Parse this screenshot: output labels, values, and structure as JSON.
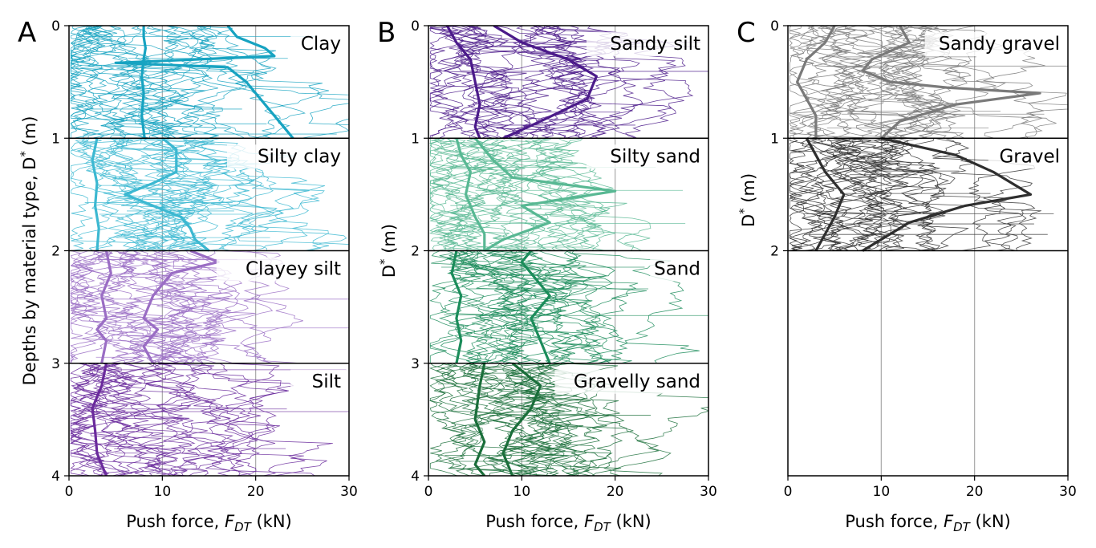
{
  "chart_data": [
    {
      "type": "line",
      "panel": "A",
      "xlabel": "Push force, F_DT (kN)",
      "xlabel_parts": {
        "pre": "Push force, ",
        "var": "F",
        "sub": "DT",
        "post": " (kN)"
      },
      "ylabel": "Depths by material type, D* (m)",
      "ylabel_parts": {
        "pre": "Depths by material type, D",
        "sup": "*",
        "post": " (m)"
      },
      "xlim": [
        0,
        30
      ],
      "ylim": [
        4,
        0
      ],
      "x_ticks": [
        "0",
        "10",
        "20",
        "30"
      ],
      "y_ticks": [
        "0",
        "1",
        "2",
        "3",
        "4"
      ],
      "grid": "vertical at 10 and 20",
      "segments": [
        {
          "name": "Clay",
          "depth": [
            0,
            1
          ],
          "color": "#17a3c1",
          "median": [
            [
              8,
              0
            ],
            [
              8,
              0.1
            ],
            [
              8.2,
              0.2
            ],
            [
              8,
              0.3
            ],
            [
              7.8,
              0.45
            ],
            [
              8,
              0.6
            ],
            [
              7.8,
              0.8
            ],
            [
              8.1,
              1
            ]
          ],
          "upper": [
            [
              17,
              0
            ],
            [
              18,
              0.1
            ],
            [
              21,
              0.2
            ],
            [
              22,
              0.27
            ],
            [
              5,
              0.33
            ],
            [
              17,
              0.37
            ],
            [
              19,
              0.5
            ],
            [
              21,
              0.7
            ],
            [
              23,
              0.9
            ],
            [
              24,
              1
            ]
          ]
        },
        {
          "name": "Silty clay",
          "depth": [
            1,
            2
          ],
          "color": "#3cb8d1",
          "median": [
            [
              3,
              1
            ],
            [
              2.5,
              1.2
            ],
            [
              3,
              1.4
            ],
            [
              2.8,
              1.6
            ],
            [
              3.2,
              1.8
            ],
            [
              3,
              2
            ]
          ],
          "upper": [
            [
              10,
              1
            ],
            [
              11.5,
              1.1
            ],
            [
              11.5,
              1.3
            ],
            [
              9,
              1.4
            ],
            [
              6,
              1.5
            ],
            [
              9,
              1.6
            ],
            [
              12,
              1.7
            ],
            [
              13,
              1.8
            ],
            [
              13.5,
              1.9
            ],
            [
              15,
              2
            ]
          ]
        },
        {
          "name": "Clayey silt",
          "depth": [
            2,
            3
          ],
          "color": "#9a6dc4",
          "median": [
            [
              4,
              2
            ],
            [
              4.5,
              2.2
            ],
            [
              3.5,
              2.4
            ],
            [
              4,
              2.6
            ],
            [
              3,
              2.7
            ],
            [
              4,
              2.8
            ],
            [
              3.5,
              3
            ]
          ],
          "upper": [
            [
              13,
              2
            ],
            [
              16,
              2.1
            ],
            [
              11,
              2.2
            ],
            [
              9,
              2.4
            ],
            [
              8,
              2.6
            ],
            [
              9.5,
              2.7
            ],
            [
              8,
              2.85
            ],
            [
              9,
              3
            ]
          ]
        },
        {
          "name": "Silt",
          "depth": [
            3,
            4
          ],
          "color": "#6a2a9c",
          "median": [
            [
              4,
              3
            ],
            [
              3.5,
              3.2
            ],
            [
              2.5,
              3.4
            ],
            [
              2.8,
              3.6
            ],
            [
              3,
              3.8
            ],
            [
              4,
              4
            ]
          ],
          "upper": []
        }
      ]
    },
    {
      "type": "line",
      "panel": "B",
      "xlabel": "Push force, F_DT (kN)",
      "xlabel_parts": {
        "pre": "Push force, ",
        "var": "F",
        "sub": "DT",
        "post": " (kN)"
      },
      "ylabel": "D* (m)",
      "ylabel_parts": {
        "pre": "D",
        "sup": "*",
        "post": " (m)"
      },
      "xlim": [
        0,
        30
      ],
      "ylim": [
        4,
        0
      ],
      "x_ticks": [
        "0",
        "10",
        "20",
        "30"
      ],
      "y_ticks": [
        "0",
        "1",
        "2",
        "3",
        "4"
      ],
      "grid": "vertical at 10 and 20",
      "segments": [
        {
          "name": "Sandy silt",
          "depth": [
            0,
            1
          ],
          "color": "#4b1a8a",
          "median": [
            [
              2,
              0
            ],
            [
              3,
              0.15
            ],
            [
              4.5,
              0.3
            ],
            [
              5,
              0.5
            ],
            [
              5.5,
              0.7
            ],
            [
              5,
              0.9
            ],
            [
              5.5,
              1
            ]
          ],
          "upper": [
            [
              7,
              0
            ],
            [
              10,
              0.15
            ],
            [
              15,
              0.3
            ],
            [
              18,
              0.45
            ],
            [
              17,
              0.65
            ],
            [
              12,
              0.85
            ],
            [
              8,
              1
            ]
          ]
        },
        {
          "name": "Silty sand",
          "depth": [
            1,
            2
          ],
          "color": "#58b893",
          "median": [
            [
              3,
              1
            ],
            [
              3.5,
              1.15
            ],
            [
              4.5,
              1.3
            ],
            [
              4,
              1.5
            ],
            [
              5,
              1.7
            ],
            [
              6,
              1.85
            ],
            [
              6,
              2
            ]
          ],
          "upper": [
            [
              5,
              1
            ],
            [
              7,
              1.2
            ],
            [
              9,
              1.35
            ],
            [
              20,
              1.47
            ],
            [
              10,
              1.6
            ],
            [
              13,
              1.75
            ],
            [
              8,
              1.9
            ],
            [
              6,
              2
            ]
          ]
        },
        {
          "name": "Sand",
          "depth": [
            2,
            3
          ],
          "color": "#1b8c5a",
          "median": [
            [
              3,
              2
            ],
            [
              2.5,
              2.2
            ],
            [
              3.5,
              2.4
            ],
            [
              3,
              2.6
            ],
            [
              3.5,
              2.8
            ],
            [
              3,
              3
            ]
          ],
          "upper": [
            [
              11,
              2
            ],
            [
              10,
              2.1
            ],
            [
              12,
              2.3
            ],
            [
              13,
              2.4
            ],
            [
              11,
              2.6
            ],
            [
              12,
              2.8
            ],
            [
              13,
              3
            ]
          ]
        },
        {
          "name": "Gravelly sand",
          "depth": [
            3,
            4
          ],
          "color": "#1a6e3a",
          "median": [
            [
              6,
              3
            ],
            [
              5.5,
              3.2
            ],
            [
              5,
              3.5
            ],
            [
              6,
              3.7
            ],
            [
              5,
              3.9
            ],
            [
              6,
              4
            ]
          ],
          "upper": [
            [
              9,
              3
            ],
            [
              12,
              3.2
            ],
            [
              11,
              3.4
            ],
            [
              9,
              3.6
            ],
            [
              8,
              3.8
            ],
            [
              9,
              4
            ]
          ]
        }
      ]
    },
    {
      "type": "line",
      "panel": "C",
      "xlabel": "Push force, F_DT (kN)",
      "xlabel_parts": {
        "pre": "Push force, ",
        "var": "F",
        "sub": "DT",
        "post": " (kN)"
      },
      "ylabel": "D* (m)",
      "ylabel_parts": {
        "pre": "D",
        "sup": "*",
        "post": " (m)"
      },
      "xlim": [
        0,
        30
      ],
      "ylim": [
        4,
        0
      ],
      "x_ticks": [
        "0",
        "10",
        "20",
        "30"
      ],
      "y_ticks": [
        "0",
        "1",
        "2"
      ],
      "grid": "vertical at 10 and 20",
      "segments": [
        {
          "name": "Sandy gravel",
          "depth": [
            0,
            1
          ],
          "color": "#7a7a7a",
          "median": [
            [
              5,
              0
            ],
            [
              4,
              0.15
            ],
            [
              2,
              0.3
            ],
            [
              1,
              0.5
            ],
            [
              2,
              0.65
            ],
            [
              3,
              0.8
            ],
            [
              3,
              1
            ]
          ],
          "upper": [
            [
              12,
              0
            ],
            [
              13,
              0.15
            ],
            [
              9,
              0.3
            ],
            [
              8,
              0.4
            ],
            [
              11,
              0.5
            ],
            [
              17,
              0.55
            ],
            [
              27,
              0.6
            ],
            [
              18,
              0.7
            ],
            [
              12,
              0.85
            ],
            [
              10,
              1
            ]
          ]
        },
        {
          "name": "Gravel",
          "depth": [
            1,
            2
          ],
          "color": "#2e2e2e",
          "median": [
            [
              2,
              1
            ],
            [
              3,
              1.15
            ],
            [
              4,
              1.3
            ],
            [
              6,
              1.5
            ],
            [
              5,
              1.7
            ],
            [
              4,
              1.85
            ],
            [
              3,
              2
            ]
          ],
          "upper": [
            [
              10,
              1
            ],
            [
              18,
              1.15
            ],
            [
              22,
              1.3
            ],
            [
              26,
              1.5
            ],
            [
              19,
              1.6
            ],
            [
              13,
              1.75
            ],
            [
              10,
              1.9
            ],
            [
              8,
              2
            ]
          ]
        }
      ]
    }
  ]
}
